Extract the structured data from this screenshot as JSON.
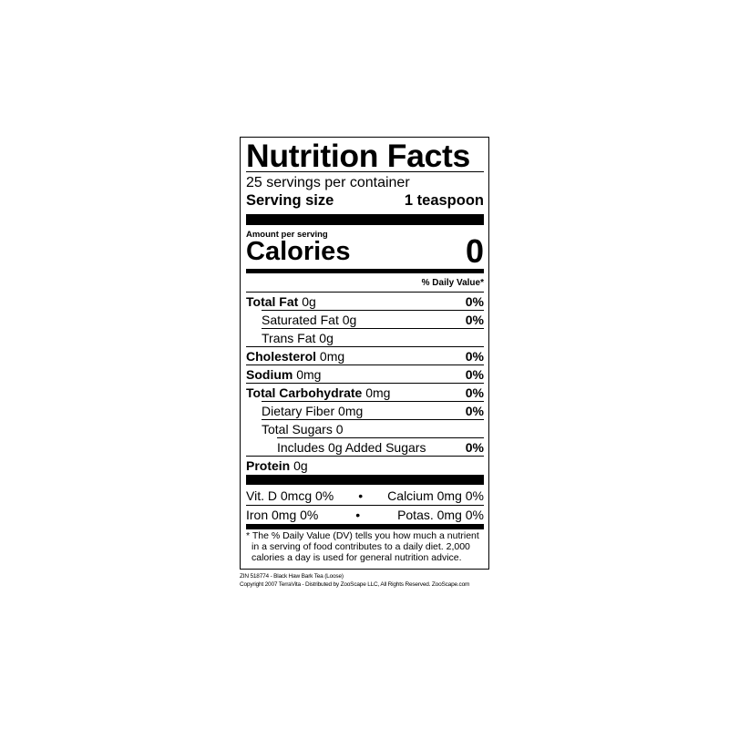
{
  "label": {
    "title": "Nutrition Facts",
    "servings_per_container": "25 servings per container",
    "serving_size_label": "Serving size",
    "serving_size_value": "1 teaspoon",
    "amount_per_serving": "Amount per serving",
    "calories_label": "Calories",
    "calories_value": "0",
    "daily_value_header": "% Daily Value*",
    "nutrients": [
      {
        "name": "Total Fat",
        "amount": "0g",
        "dv": "0%"
      },
      {
        "name": "Saturated Fat",
        "amount": "0g",
        "dv": "0%"
      },
      {
        "name": "Trans Fat",
        "amount": "0g",
        "dv": ""
      },
      {
        "name": "Cholesterol",
        "amount": "0mg",
        "dv": "0%"
      },
      {
        "name": "Sodium",
        "amount": "0mg",
        "dv": "0%"
      },
      {
        "name": "Total Carbohydrate",
        "amount": "0mg",
        "dv": "0%"
      },
      {
        "name": "Dietary Fiber",
        "amount": "0mg",
        "dv": "0%"
      },
      {
        "name": "Total Sugars",
        "amount": "0",
        "dv": ""
      },
      {
        "name": "Includes 0g Added Sugars",
        "amount": "",
        "dv": "0%"
      },
      {
        "name": "Protein",
        "amount": "0g",
        "dv": ""
      }
    ],
    "vitamins": [
      {
        "left": "Vit. D 0mcg 0%",
        "bullet": "•",
        "right": "Calcium 0mg 0%"
      },
      {
        "left": "Iron 0mg 0%",
        "bullet": "•",
        "right": "Potas. 0mg 0%"
      }
    ],
    "footnote": "* The % Daily Value (DV) tells you how much a nutrient in a serving of food contributes to a daily diet. 2,000 calories a day is used for general nutrition advice."
  },
  "product_line": "ZIN 518774 - Black Haw Bark Tea (Loose)",
  "copyright_line": "Copyright 2007 TerraVita - Distributed by ZooScape LLC, All Rights Reserved. ZooScape.com"
}
